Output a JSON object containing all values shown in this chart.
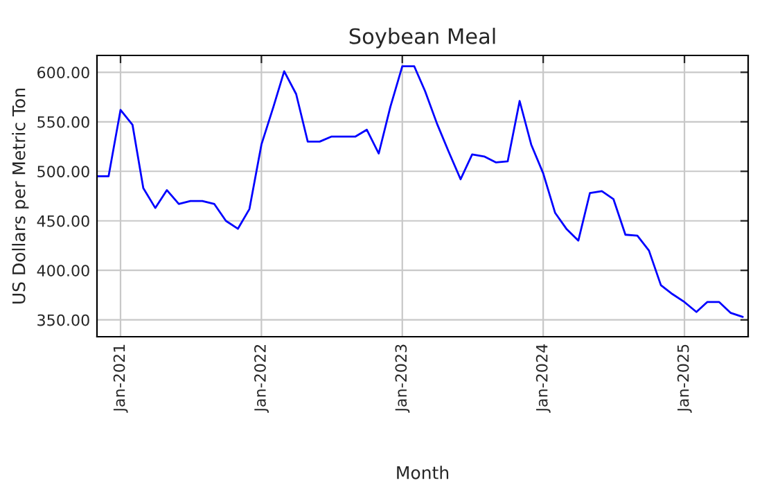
{
  "chart_data": {
    "type": "line",
    "title": "Soybean Meal",
    "xlabel": "Month",
    "ylabel": "US Dollars per Metric Ton",
    "x": [
      "2020-11",
      "2020-12",
      "2021-01",
      "2021-02",
      "2021-03",
      "2021-04",
      "2021-05",
      "2021-06",
      "2021-07",
      "2021-08",
      "2021-09",
      "2021-10",
      "2021-11",
      "2021-12",
      "2022-01",
      "2022-02",
      "2022-03",
      "2022-04",
      "2022-05",
      "2022-06",
      "2022-07",
      "2022-08",
      "2022-09",
      "2022-10",
      "2022-11",
      "2022-12",
      "2023-01",
      "2023-02",
      "2023-03",
      "2023-04",
      "2023-05",
      "2023-06",
      "2023-07",
      "2023-08",
      "2023-09",
      "2023-10",
      "2023-11",
      "2023-12",
      "2024-01",
      "2024-02",
      "2024-03",
      "2024-04",
      "2024-05",
      "2024-06",
      "2024-07",
      "2024-08",
      "2024-09",
      "2024-10",
      "2024-11",
      "2024-12",
      "2025-01",
      "2025-02",
      "2025-03",
      "2025-04",
      "2025-05",
      "2025-06"
    ],
    "series": [
      {
        "color": "#0000ff",
        "values": [
          495,
          495,
          562,
          547,
          483,
          463,
          481,
          467,
          470,
          470,
          467,
          450,
          442,
          462,
          527,
          565,
          601,
          578,
          530,
          530,
          535,
          535,
          535,
          542,
          518,
          565,
          606,
          606,
          581,
          548,
          520,
          492,
          517,
          515,
          509,
          510,
          571,
          527,
          498,
          458,
          442,
          430,
          478,
          480,
          472,
          436,
          435,
          420,
          385,
          376,
          368,
          358,
          368,
          368,
          357,
          353
        ]
      }
    ],
    "xlim": [
      "2020-11-01",
      "2025-06-15"
    ],
    "xticks": [
      {
        "value": "2021-01",
        "label": "Jan-2021"
      },
      {
        "value": "2022-01",
        "label": "Jan-2022"
      },
      {
        "value": "2023-01",
        "label": "Jan-2023"
      },
      {
        "value": "2024-01",
        "label": "Jan-2024"
      },
      {
        "value": "2025-01",
        "label": "Jan-2025"
      }
    ],
    "ylim": [
      333,
      617
    ],
    "yticks": [
      {
        "value": 350,
        "label": "350.00"
      },
      {
        "value": 400,
        "label": "400.00"
      },
      {
        "value": 450,
        "label": "450.00"
      },
      {
        "value": 500,
        "label": "500.00"
      },
      {
        "value": 550,
        "label": "550.00"
      },
      {
        "value": 600,
        "label": "600.00"
      }
    ],
    "grid": true,
    "marker": "none",
    "line_style": "solid"
  }
}
